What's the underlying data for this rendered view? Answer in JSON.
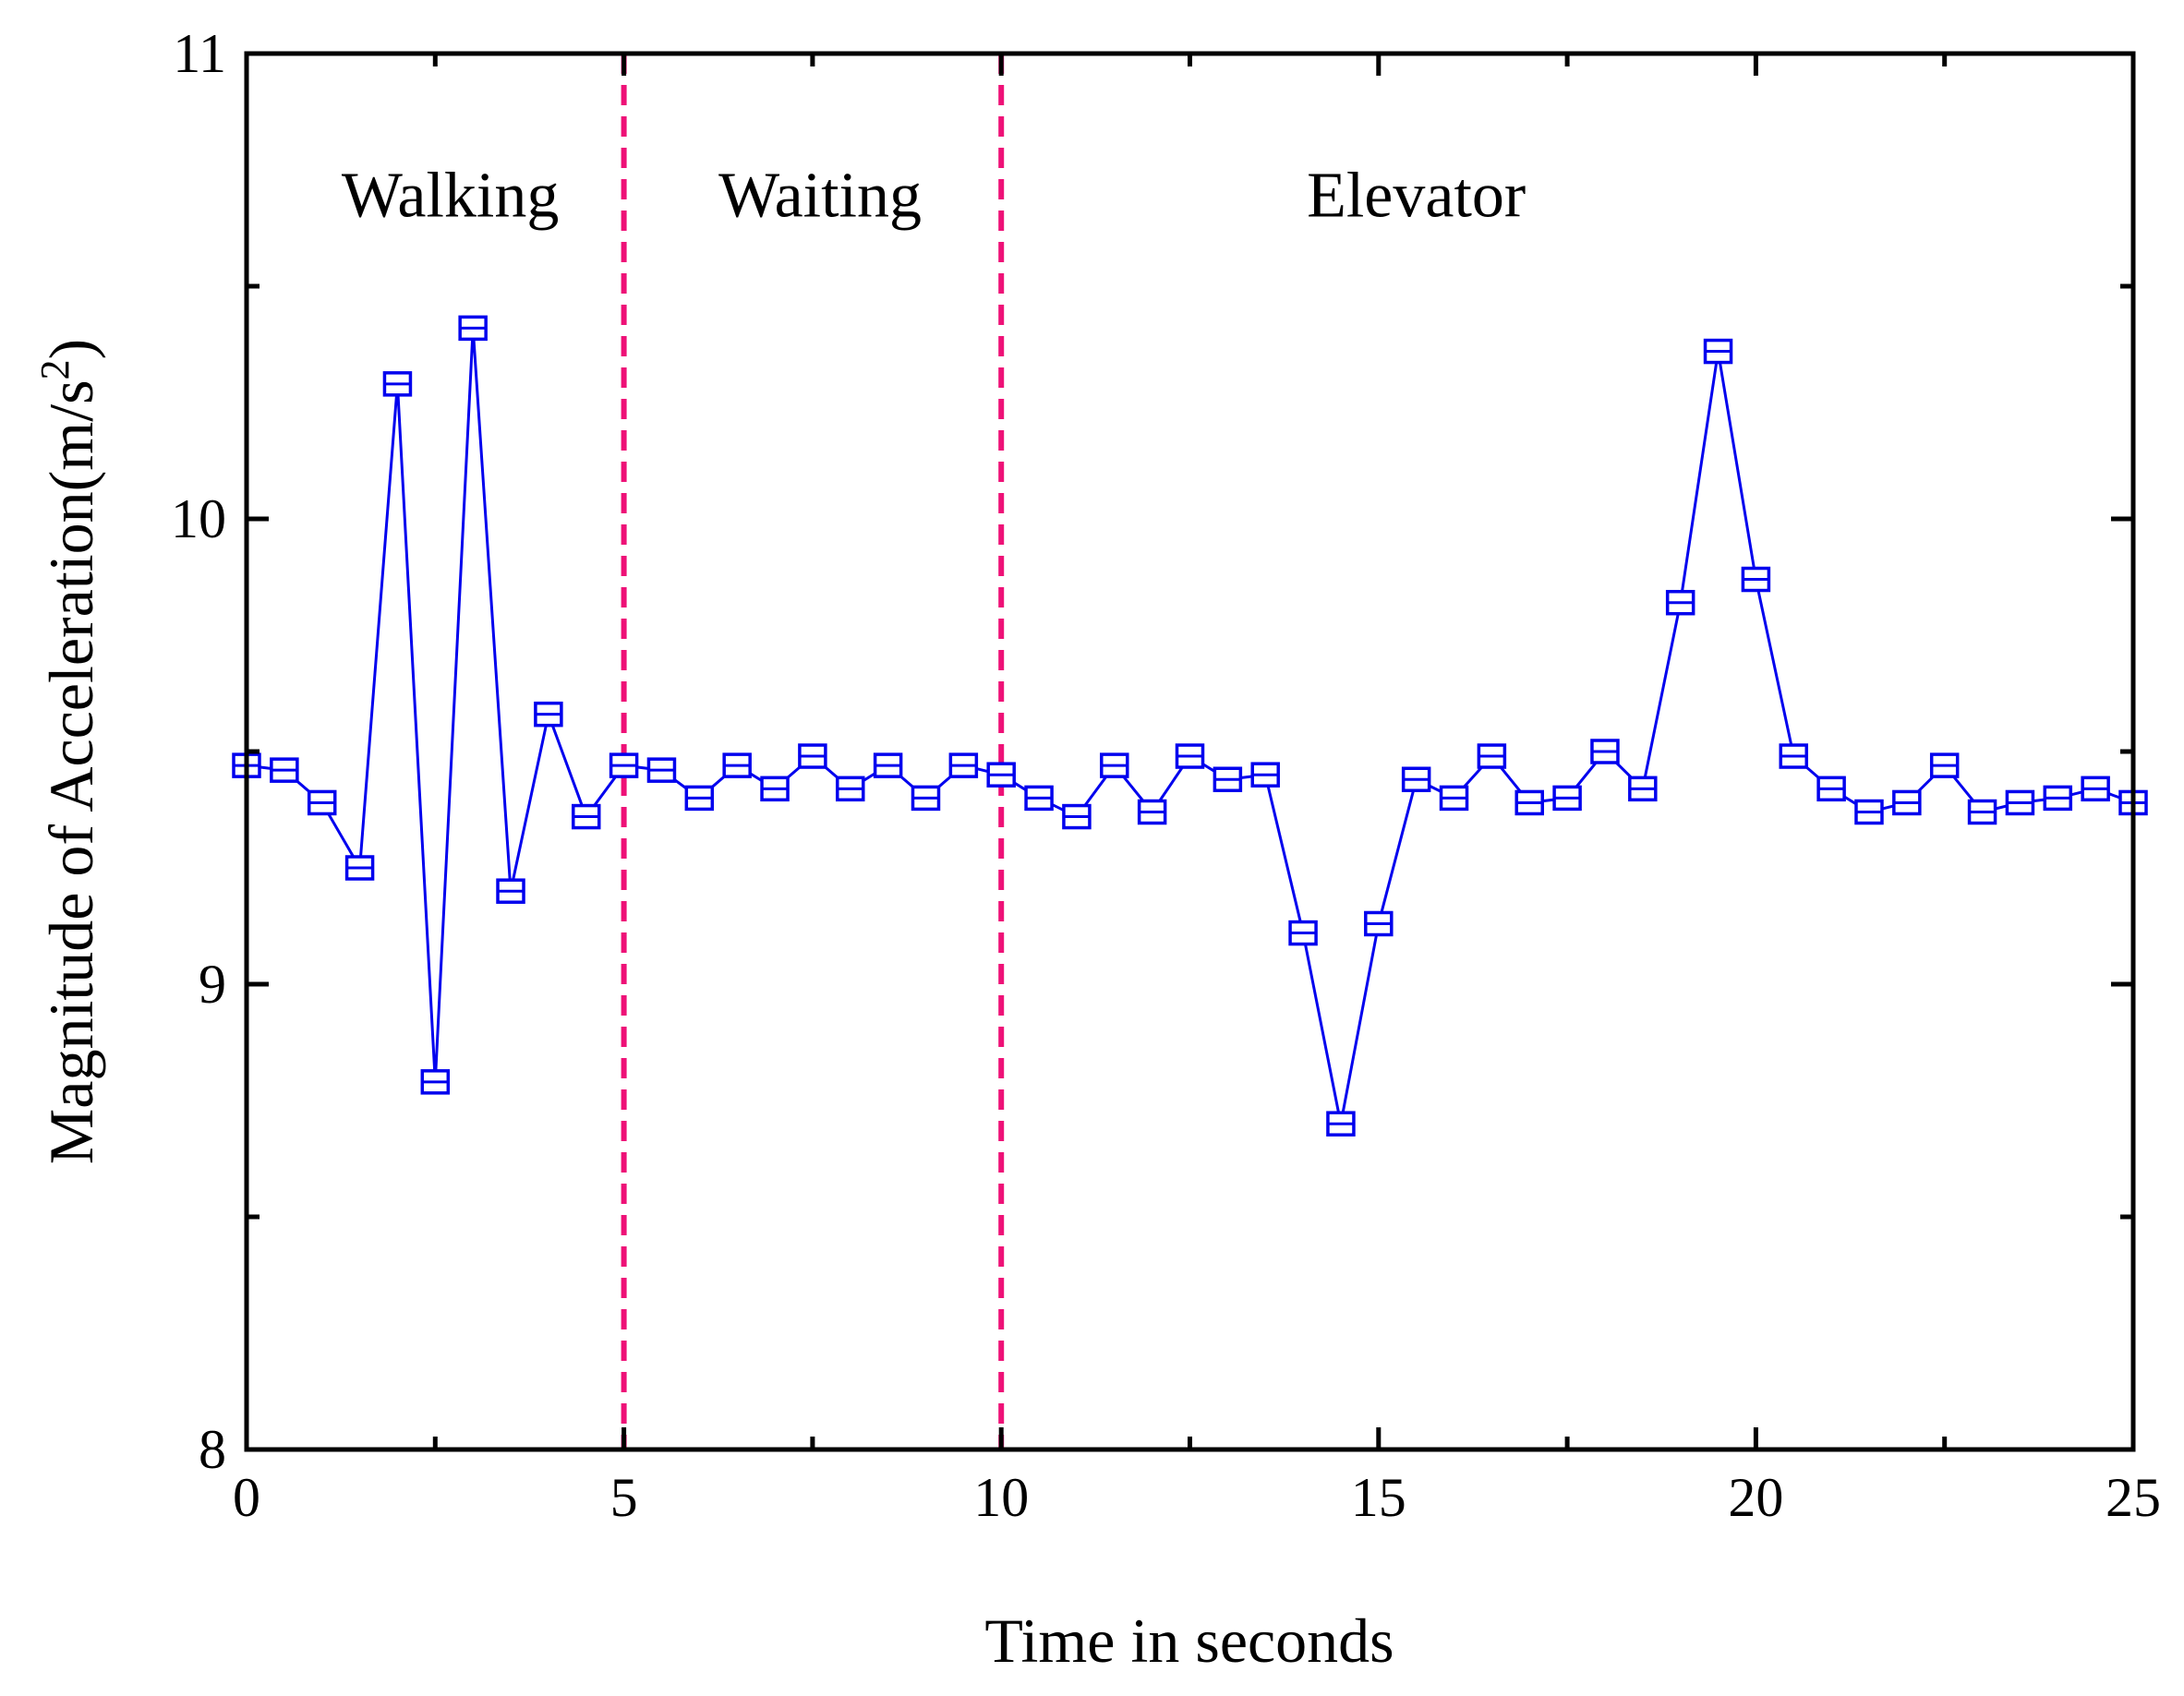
{
  "chart_data": {
    "type": "line",
    "title": "",
    "xlabel": "Time in seconds",
    "ylabel_main": "Magnitude of Acceleration(m/s",
    "ylabel_sup": "2",
    "ylabel_close": ")",
    "xlim": [
      0,
      25
    ],
    "ylim": [
      8,
      11
    ],
    "xticks": [
      0,
      5,
      10,
      15,
      20,
      25
    ],
    "xtick_labels": [
      "0",
      "5",
      "10",
      "15",
      "20",
      "25"
    ],
    "yticks": [
      8,
      9,
      10,
      11
    ],
    "ytick_labels": [
      "8",
      "9",
      "10",
      "11"
    ],
    "y_minor_ticks": [
      8.5,
      9.5,
      10.5
    ],
    "x_minor_ticks": [
      2.5,
      7.5,
      12.5,
      17.5,
      22.5
    ],
    "grid": false,
    "series": [
      {
        "name": "Acceleration magnitude",
        "color": "#0000ee",
        "marker": "square-with-bar",
        "x": [
          0,
          0.5,
          1,
          1.5,
          2,
          2.5,
          3,
          3.5,
          4,
          4.5,
          5,
          5.5,
          6,
          6.5,
          7,
          7.5,
          8,
          8.5,
          9,
          9.5,
          10,
          10.5,
          11,
          11.5,
          12,
          12.5,
          13,
          13.5,
          14,
          14.5,
          15,
          15.5,
          16,
          16.5,
          17,
          17.5,
          18,
          18.5,
          19,
          19.5,
          20,
          20.5,
          21,
          21.5,
          22,
          22.5,
          23,
          23.5,
          24,
          24.5,
          25
        ],
        "values": [
          9.47,
          9.46,
          9.39,
          9.25,
          10.29,
          8.79,
          10.41,
          9.2,
          9.58,
          9.36,
          9.47,
          9.46,
          9.4,
          9.47,
          9.42,
          9.49,
          9.42,
          9.47,
          9.4,
          9.47,
          9.45,
          9.4,
          9.36,
          9.47,
          9.37,
          9.49,
          9.44,
          9.45,
          9.11,
          8.7,
          9.13,
          9.44,
          9.4,
          9.49,
          9.39,
          9.4,
          9.5,
          9.42,
          9.82,
          10.36,
          9.87,
          9.49,
          9.42,
          9.37,
          9.39,
          9.47,
          9.37,
          9.39,
          9.4,
          9.42,
          9.39
        ]
      }
    ],
    "dividers": {
      "x": [
        5,
        10
      ],
      "color": "#ee1177",
      "style": "dashed"
    },
    "annotations": [
      {
        "text": "Walking",
        "x": 2.7,
        "y": 10.65
      },
      {
        "text": "Waiting",
        "x": 7.6,
        "y": 10.65
      },
      {
        "text": "Elevator",
        "x": 15.5,
        "y": 10.65
      }
    ]
  }
}
